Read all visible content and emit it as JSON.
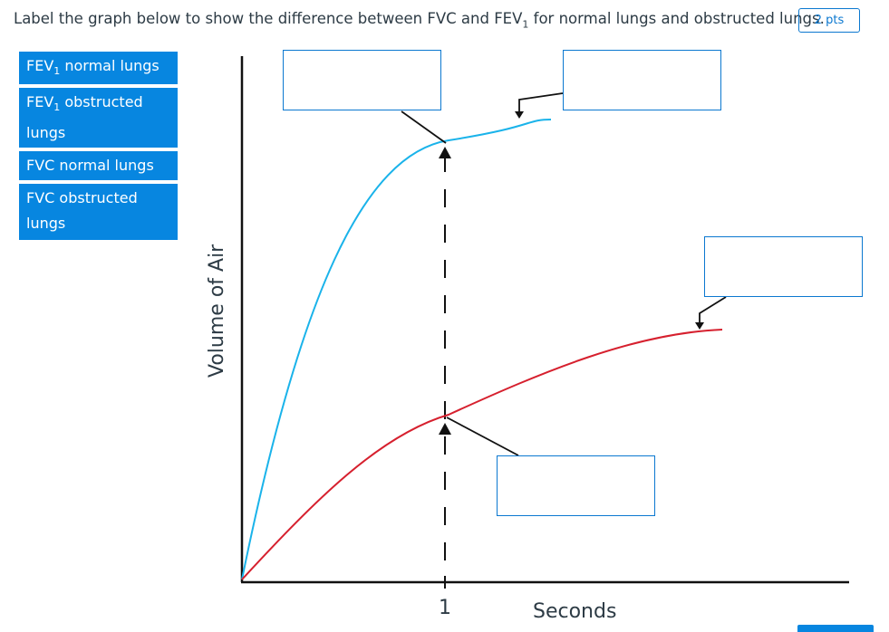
{
  "question": {
    "text_before": "Label the graph below to show the difference between FVC and FEV",
    "text_sub": "1",
    "text_after": " for normal lungs and obstructed lungs.",
    "points": "2 pts"
  },
  "labels": [
    {
      "main": "FEV",
      "sub": "1",
      "rest": " normal lungs"
    },
    {
      "main": "FEV",
      "sub": "1",
      "rest": " obstructed lungs"
    },
    {
      "main": "FVC normal lungs",
      "sub": "",
      "rest": ""
    },
    {
      "main": "FVC obstructed lungs",
      "sub": "",
      "rest": ""
    }
  ],
  "graph": {
    "ylabel": "Volume of Air",
    "xlabel": "Seconds",
    "tick": "1",
    "colors": {
      "normal": "#1ab3ea",
      "obstructed": "#d6202e",
      "axis": "#111111"
    }
  }
}
